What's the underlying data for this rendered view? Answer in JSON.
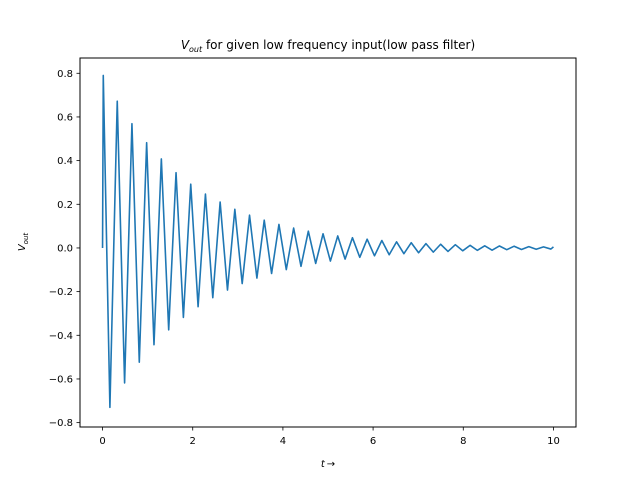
{
  "chart_data": {
    "type": "line",
    "title": {
      "symbol": "V",
      "subscript": "out",
      "text": " for given low frequency input(low pass filter)"
    },
    "xlabel": {
      "symbol": "t",
      "arrow": "→"
    },
    "ylabel": {
      "symbol": "V",
      "subscript": "out"
    },
    "xlim": [
      -0.5,
      10.5
    ],
    "ylim": [
      -0.82,
      0.87
    ],
    "xticks": [
      0,
      2,
      4,
      6,
      8,
      10
    ],
    "xtick_labels": [
      "0",
      "2",
      "4",
      "6",
      "8",
      "10"
    ],
    "yticks": [
      -0.8,
      -0.6,
      -0.4,
      -0.2,
      0.0,
      0.2,
      0.4,
      0.6,
      0.8
    ],
    "ytick_labels": [
      "−0.8",
      "−0.6",
      "−0.4",
      "−0.2",
      "0.0",
      "0.2",
      "0.4",
      "0.6",
      "0.8"
    ],
    "grid": false,
    "line_color": "#1f77b4",
    "series": [
      {
        "x": [
          0.0,
          0.016,
          0.163,
          0.326,
          0.489,
          0.652,
          0.815,
          0.978,
          1.141,
          1.304,
          1.467,
          1.63,
          1.793,
          1.956,
          2.119,
          2.282,
          2.445,
          2.608,
          2.771,
          2.934,
          3.097,
          3.26,
          3.423,
          3.586,
          3.749,
          3.912,
          4.075,
          4.238,
          4.401,
          4.564,
          4.727,
          4.89,
          5.053,
          5.216,
          5.379,
          5.542,
          5.705,
          5.868,
          6.031,
          6.194,
          6.357,
          6.52,
          6.683,
          6.846,
          7.009,
          7.172,
          7.335,
          7.498,
          7.661,
          7.824,
          7.987,
          8.15,
          8.313,
          8.476,
          8.639,
          8.802,
          8.965,
          9.128,
          9.291,
          9.454,
          9.617,
          9.78,
          9.943,
          10.0
        ],
        "y": [
          0.0,
          0.79,
          -0.73,
          0.672,
          -0.618,
          0.569,
          -0.523,
          0.482,
          -0.443,
          0.408,
          -0.375,
          0.345,
          -0.318,
          0.292,
          -0.269,
          0.247,
          -0.228,
          0.21,
          -0.193,
          0.177,
          -0.163,
          0.15,
          -0.138,
          0.127,
          -0.117,
          0.108,
          -0.099,
          0.091,
          -0.084,
          0.077,
          -0.071,
          0.065,
          -0.06,
          0.055,
          -0.051,
          0.047,
          -0.043,
          0.04,
          -0.036,
          0.034,
          -0.031,
          0.028,
          -0.026,
          0.024,
          -0.022,
          0.02,
          -0.019,
          0.017,
          -0.016,
          0.015,
          -0.013,
          0.012,
          -0.011,
          0.01,
          -0.01,
          0.009,
          -0.008,
          0.008,
          -0.007,
          0.006,
          -0.006,
          0.005,
          -0.005,
          0.005
        ]
      }
    ]
  }
}
